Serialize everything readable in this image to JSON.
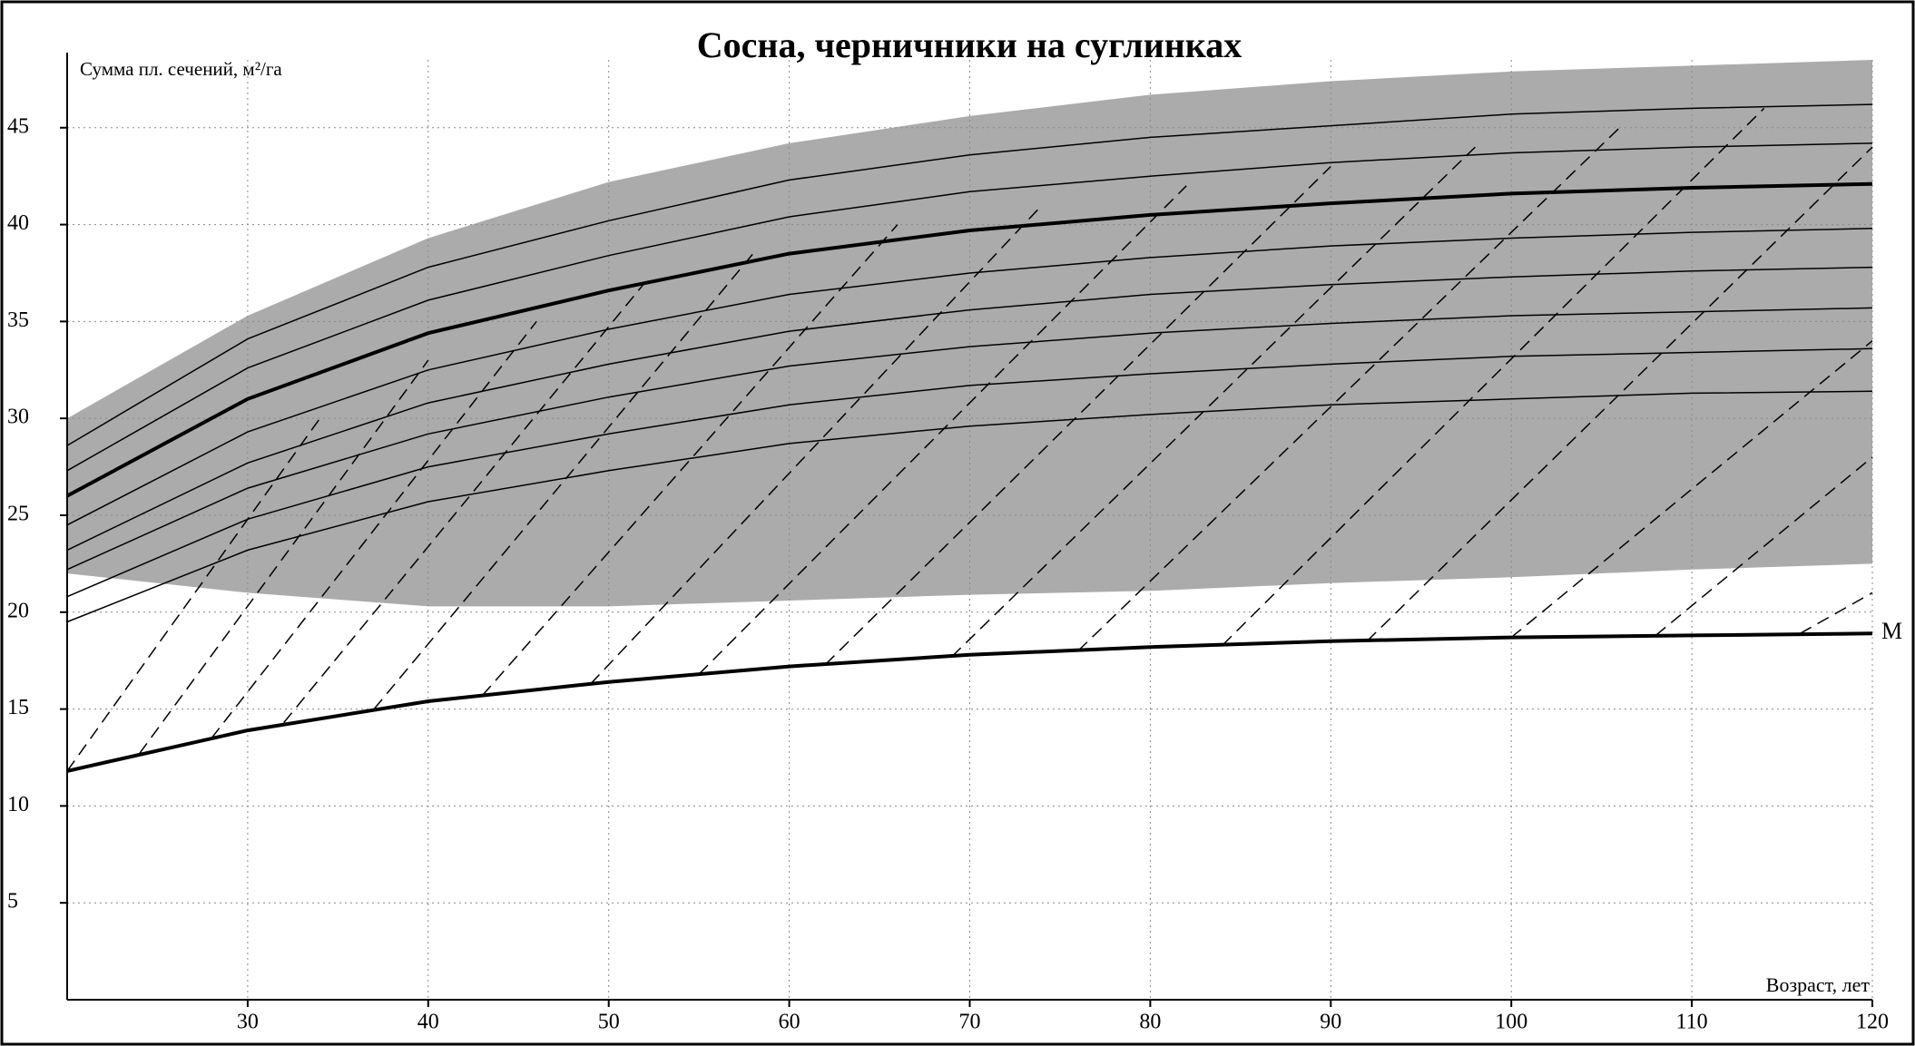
{
  "chart_data": {
    "type": "line",
    "title": "Сосна, черничники на суглинках",
    "y_label": "Сумма пл. сечений, м²/га",
    "x_label": "Возраст, лет",
    "x": [
      20,
      30,
      40,
      50,
      60,
      70,
      80,
      90,
      100,
      110,
      120
    ],
    "xlim": [
      20,
      120
    ],
    "ylim": [
      0,
      48.5
    ],
    "xticks": [
      30,
      40,
      50,
      60,
      70,
      80,
      90,
      100,
      110,
      120
    ],
    "yticks": [
      5,
      10,
      15,
      20,
      25,
      30,
      35,
      40,
      45
    ],
    "grid": true,
    "band": {
      "color": "#ababab",
      "upper": [
        30,
        35.3,
        39.3,
        42.2,
        44.2,
        45.6,
        46.7,
        47.4,
        47.9,
        48.2,
        48.5
      ],
      "lower": [
        22,
        21,
        20.3,
        20.3,
        20.6,
        20.9,
        21.1,
        21.5,
        21.8,
        22.2,
        22.5
      ]
    },
    "series": [
      {
        "color": "#000000",
        "width": 1.5,
        "values": [
          19.5,
          23.2,
          25.7,
          27.3,
          28.7,
          29.6,
          30.2,
          30.7,
          31.0,
          31.3,
          31.4
        ]
      },
      {
        "color": "#000000",
        "width": 1.5,
        "values": [
          20.8,
          24.8,
          27.5,
          29.2,
          30.7,
          31.7,
          32.3,
          32.8,
          33.2,
          33.4,
          33.6
        ]
      },
      {
        "color": "#000000",
        "width": 1.5,
        "values": [
          22.2,
          26.4,
          29.2,
          31.1,
          32.7,
          33.7,
          34.4,
          34.9,
          35.3,
          35.5,
          35.7
        ]
      },
      {
        "color": "#000000",
        "width": 1.5,
        "values": [
          23.2,
          27.7,
          30.8,
          32.8,
          34.5,
          35.6,
          36.4,
          36.9,
          37.3,
          37.6,
          37.8
        ]
      },
      {
        "color": "#000000",
        "width": 1.5,
        "values": [
          24.5,
          29.3,
          32.5,
          34.6,
          36.4,
          37.5,
          38.3,
          38.9,
          39.3,
          39.6,
          39.8
        ]
      },
      {
        "color": "#000000",
        "width": 4,
        "values": [
          26,
          31,
          34.4,
          36.6,
          38.5,
          39.7,
          40.5,
          41.1,
          41.6,
          41.9,
          42.1
        ]
      },
      {
        "color": "#000000",
        "width": 1.5,
        "values": [
          27.3,
          32.6,
          36.1,
          38.4,
          40.4,
          41.7,
          42.5,
          43.2,
          43.7,
          44.0,
          44.2
        ]
      },
      {
        "color": "#000000",
        "width": 1.5,
        "values": [
          28.6,
          34.1,
          37.8,
          40.2,
          42.3,
          43.6,
          44.5,
          45.1,
          45.7,
          46.0,
          46.2
        ]
      },
      {
        "name": "M",
        "color": "#000000",
        "width": 4,
        "values": [
          11.8,
          13.9,
          15.4,
          16.4,
          17.2,
          17.8,
          18.2,
          18.5,
          18.7,
          18.8,
          18.9
        ]
      }
    ],
    "guides": [
      {
        "x": [
          20,
          34
        ],
        "y": [
          11.8,
          30
        ]
      },
      {
        "x": [
          24,
          40
        ],
        "y": [
          12.7,
          33
        ]
      },
      {
        "x": [
          28,
          46
        ],
        "y": [
          13.5,
          35
        ]
      },
      {
        "x": [
          32,
          52
        ],
        "y": [
          14.3,
          37
        ]
      },
      {
        "x": [
          37,
          58
        ],
        "y": [
          15.0,
          38.5
        ]
      },
      {
        "x": [
          43,
          66
        ],
        "y": [
          15.7,
          40
        ]
      },
      {
        "x": [
          49,
          74
        ],
        "y": [
          16.3,
          41
        ]
      },
      {
        "x": [
          55,
          82
        ],
        "y": [
          16.8,
          42
        ]
      },
      {
        "x": [
          62,
          90
        ],
        "y": [
          17.3,
          43
        ]
      },
      {
        "x": [
          69,
          98
        ],
        "y": [
          17.7,
          44
        ]
      },
      {
        "x": [
          76,
          106
        ],
        "y": [
          18.0,
          45
        ]
      },
      {
        "x": [
          84,
          114
        ],
        "y": [
          18.3,
          46
        ]
      },
      {
        "x": [
          92,
          120
        ],
        "y": [
          18.5,
          44
        ]
      },
      {
        "x": [
          100,
          120
        ],
        "y": [
          18.7,
          34
        ]
      },
      {
        "x": [
          108,
          120
        ],
        "y": [
          18.8,
          28
        ]
      },
      {
        "x": [
          116,
          120
        ],
        "y": [
          18.9,
          21
        ]
      }
    ]
  }
}
